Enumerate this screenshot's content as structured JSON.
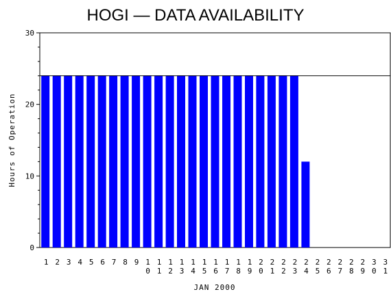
{
  "chart_data": {
    "type": "bar",
    "title": "HOGI — DATA AVAILABILITY",
    "xlabel": "JAN 2000",
    "ylabel": "Hours of Operation",
    "ylim": [
      0,
      30
    ],
    "yticks": [
      "0",
      "10",
      "20",
      "30"
    ],
    "reference_line": 24,
    "bar_color": "#0000ff",
    "categories": [
      "1",
      "2",
      "3",
      "4",
      "5",
      "6",
      "7",
      "8",
      "9",
      "10",
      "11",
      "12",
      "13",
      "14",
      "15",
      "16",
      "17",
      "18",
      "19",
      "20",
      "21",
      "22",
      "23",
      "24",
      "25",
      "26",
      "27",
      "28",
      "29",
      "30",
      "31"
    ],
    "values": [
      24,
      24,
      24,
      24,
      24,
      24,
      24,
      24,
      24,
      24,
      24,
      24,
      24,
      24,
      24,
      24,
      24,
      24,
      24,
      24,
      24,
      24,
      24,
      12,
      0,
      0,
      0,
      0,
      0,
      0,
      0
    ]
  }
}
